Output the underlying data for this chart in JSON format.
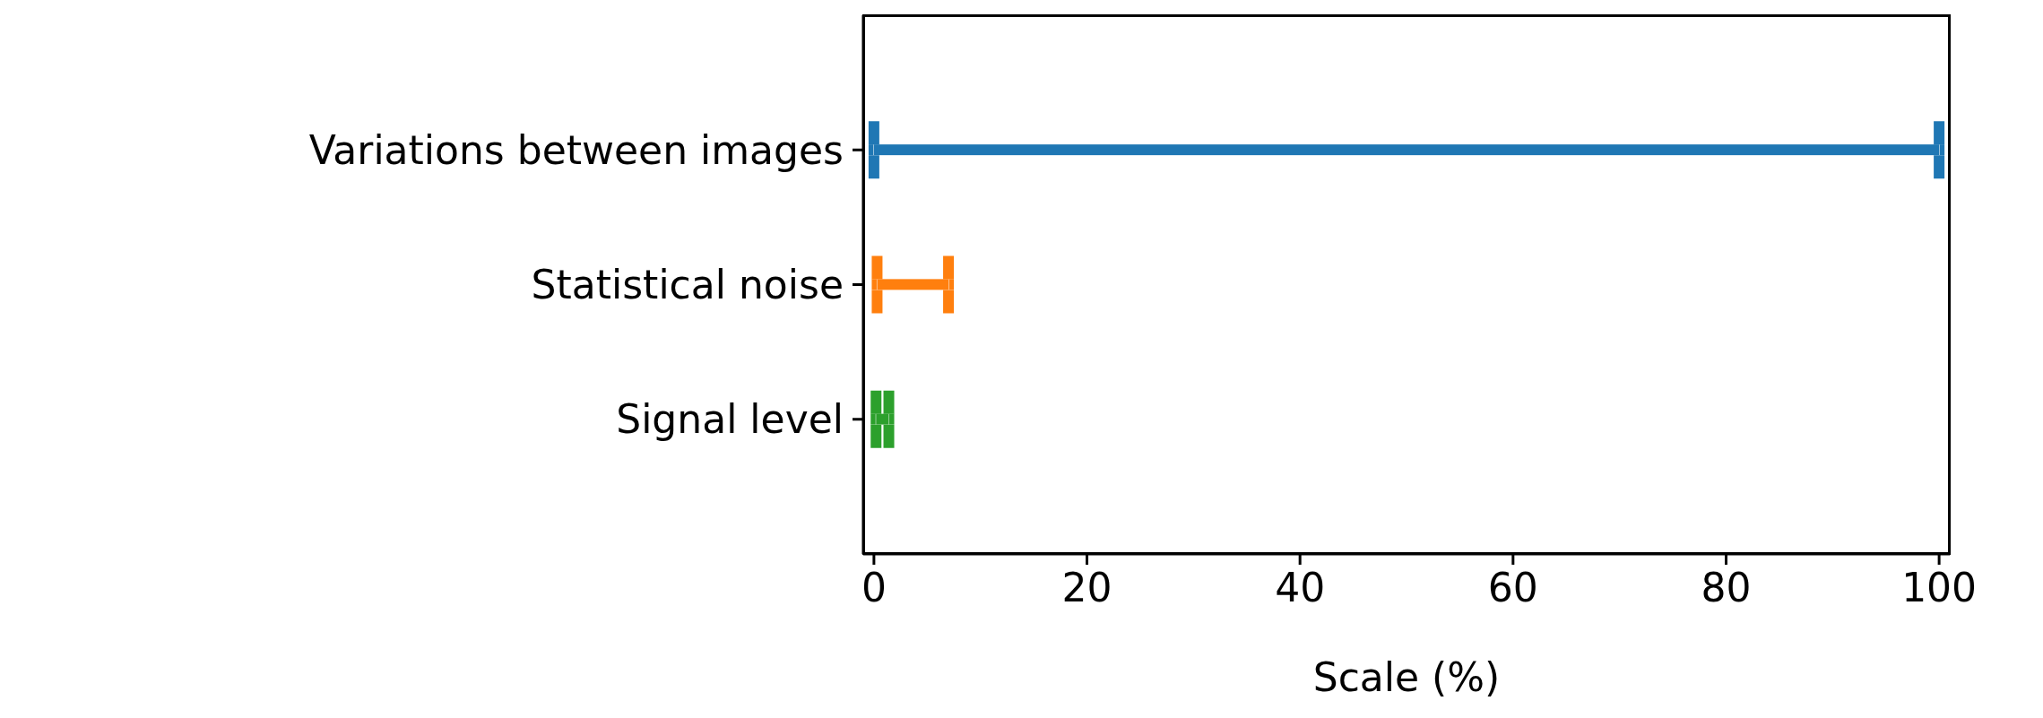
{
  "chart_data": {
    "type": "bar",
    "orientation": "horizontal",
    "categories": [
      "Variations between images",
      "Statistical noise",
      "Signal level"
    ],
    "base": [
      0,
      0.3,
      0.2
    ],
    "values": [
      100,
      6.7,
      1.2
    ],
    "colors": [
      "#1f77b4",
      "#ff7f0e",
      "#2ca02c"
    ],
    "xlabel": "Scale (%)",
    "xlim": [
      -1,
      101
    ],
    "xticks": [
      0,
      20,
      40,
      60,
      80,
      100
    ],
    "grid": false,
    "legend": false
  }
}
